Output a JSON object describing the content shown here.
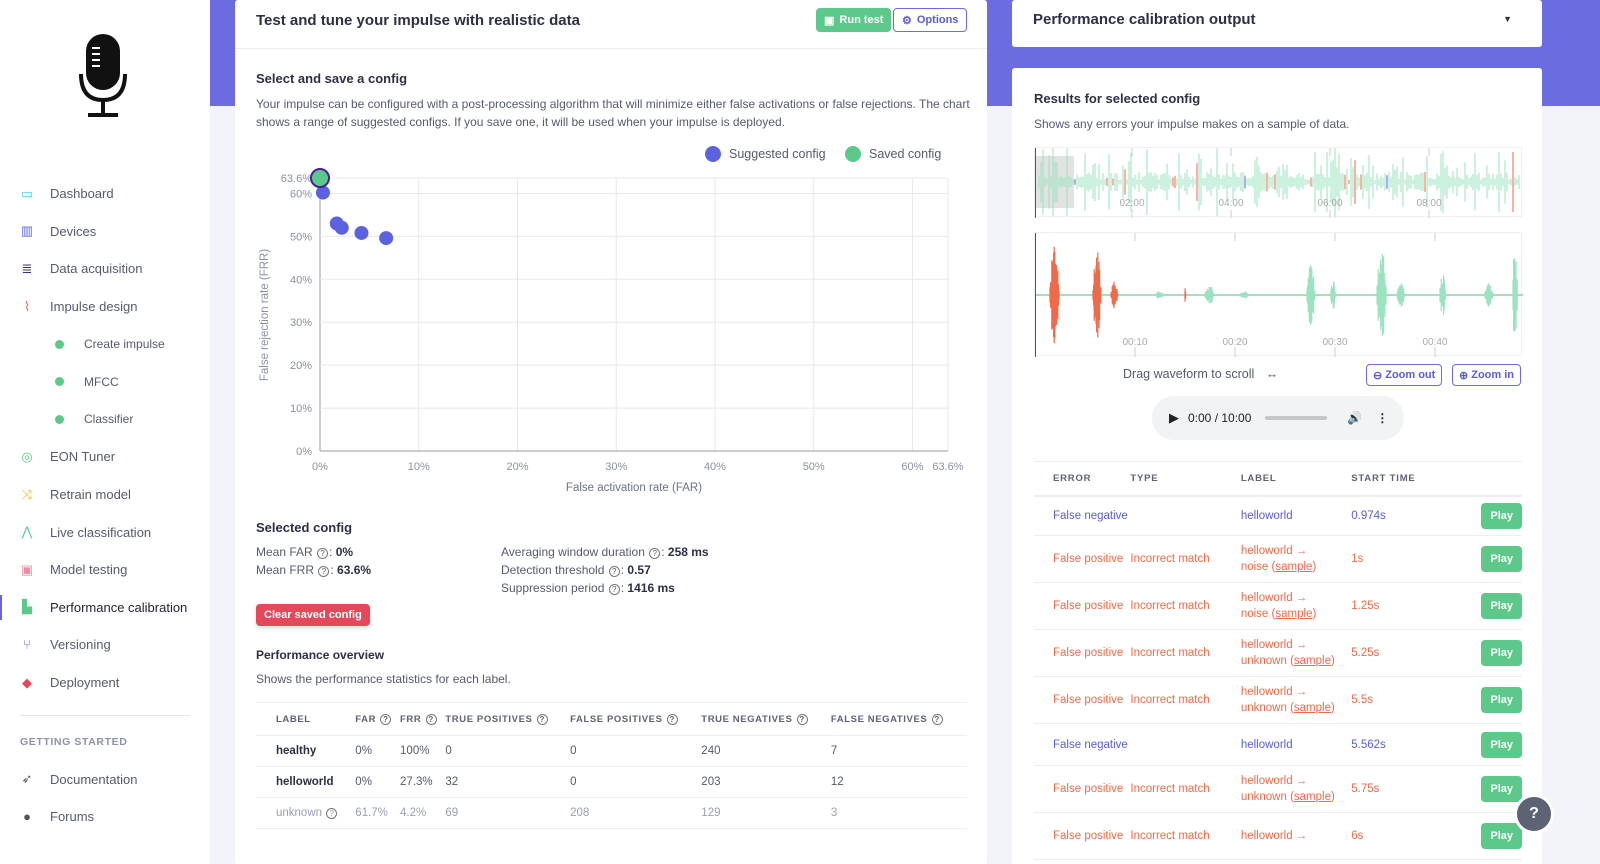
{
  "sidebar": {
    "items": [
      {
        "label": "Dashboard",
        "icon": "monitor-icon",
        "color": "#5bc8e8"
      },
      {
        "label": "Devices",
        "icon": "chip-icon",
        "color": "#6366e0"
      },
      {
        "label": "Data acquisition",
        "icon": "database-icon",
        "color": "#3d2a8f"
      },
      {
        "label": "Impulse design",
        "icon": "pulse-icon",
        "color": "#ef6a48"
      },
      {
        "label": "Create impulse",
        "sub": true
      },
      {
        "label": "MFCC",
        "sub": true
      },
      {
        "label": "Classifier",
        "sub": true
      },
      {
        "label": "EON Tuner",
        "icon": "compass-icon",
        "color": "#5cc98b"
      },
      {
        "label": "Retrain model",
        "icon": "shuffle-icon",
        "color": "#f0b82e"
      },
      {
        "label": "Live classification",
        "icon": "network-icon",
        "color": "#5cc98b"
      },
      {
        "label": "Model testing",
        "icon": "clipboard-check-icon",
        "color": "#f08aa0"
      },
      {
        "label": "Performance calibration",
        "icon": "factory-icon",
        "color": "#5cc98b",
        "active": true
      },
      {
        "label": "Versioning",
        "icon": "branch-icon",
        "color": "#6366e0"
      },
      {
        "label": "Deployment",
        "icon": "box-icon",
        "color": "#e5475b"
      }
    ],
    "section": "GETTING STARTED",
    "extra": [
      {
        "label": "Documentation",
        "icon": "rocket-icon"
      },
      {
        "label": "Forums",
        "icon": "chat-icon"
      }
    ]
  },
  "center": {
    "title": "Test and tune your impulse with realistic data",
    "run_test": "Run test",
    "options": "Options",
    "select_title": "Select and save a config",
    "select_desc": "Your impulse can be configured with a post-processing algorithm that will minimize either false activations or false rejections. The chart shows a range of suggested configs. If you save one, it will be used when your impulse is deployed.",
    "selected_title": "Selected config",
    "mean_far_label": "Mean FAR",
    "mean_far": "0%",
    "mean_frr_label": "Mean FRR",
    "mean_frr": "63.6%",
    "avg_label": "Averaging window duration",
    "avg": "258 ms",
    "thr_label": "Detection threshold",
    "thr": "0.57",
    "sup_label": "Suppression period",
    "sup": "1416 ms",
    "clear": "Clear saved config",
    "perf_title": "Performance overview",
    "perf_desc": "Shows the performance statistics for each label.",
    "perf_headers": [
      "LABEL",
      "FAR",
      "FRR",
      "TRUE POSITIVES",
      "FALSE POSITIVES",
      "TRUE NEGATIVES",
      "FALSE NEGATIVES"
    ],
    "perf_rows": [
      [
        "healthy",
        "0%",
        "100%",
        "0",
        "0",
        "240",
        "7"
      ],
      [
        "helloworld",
        "0%",
        "27.3%",
        "32",
        "0",
        "203",
        "12"
      ],
      [
        "unknown",
        "61.7%",
        "4.2%",
        "69",
        "208",
        "129",
        "3"
      ]
    ]
  },
  "chart_data": {
    "type": "scatter",
    "xlabel": "False activation rate (FAR)",
    "ylabel": "False rejection rate (FRR)",
    "xlim": [
      0,
      63.6
    ],
    "ylim": [
      0,
      63.6
    ],
    "xticks": [
      "0%",
      "10%",
      "20%",
      "30%",
      "40%",
      "50%",
      "60%",
      "63.6%"
    ],
    "xtick_values": [
      0,
      10,
      20,
      30,
      40,
      50,
      60,
      63.6
    ],
    "yticks": [
      "0%",
      "10%",
      "20%",
      "30%",
      "40%",
      "50%",
      "60%",
      "63.6%"
    ],
    "ytick_values": [
      0,
      10,
      20,
      30,
      40,
      50,
      60,
      63.6
    ],
    "legend": "top-right",
    "series": [
      {
        "name": "Suggested config",
        "color": "#5b62e0",
        "points": [
          [
            0.3,
            60.2
          ],
          [
            1.7,
            53
          ],
          [
            2.2,
            52
          ],
          [
            4.2,
            50.8
          ],
          [
            6.7,
            49.6
          ]
        ]
      },
      {
        "name": "Saved config",
        "color": "#5cc98b",
        "points": [
          [
            0,
            63.6
          ]
        ]
      }
    ]
  },
  "right": {
    "output_title": "Performance calibration output",
    "results_title": "Results for selected config",
    "results_desc": "Shows any errors your impulse makes on a sample of data.",
    "overview_ticks": [
      "02:00",
      "04:00",
      "06:00",
      "08:00"
    ],
    "detail_ticks": [
      "00:10",
      "00:20",
      "00:30",
      "00:40"
    ],
    "drag": "Drag waveform to scroll",
    "zoom_out": "Zoom out",
    "zoom_in": "Zoom in",
    "time": "0:00 / 10:00",
    "headers": [
      "ERROR",
      "TYPE",
      "LABEL",
      "START TIME"
    ],
    "rows": [
      {
        "error": "False negative",
        "type": "",
        "label": "helloworld",
        "label2": "",
        "start": "0.974s",
        "kind": "fn"
      },
      {
        "error": "False positive",
        "type": "Incorrect match",
        "label": "helloworld →",
        "label2": "noise",
        "start": "1s",
        "kind": "fp"
      },
      {
        "error": "False positive",
        "type": "Incorrect match",
        "label": "helloworld →",
        "label2": "noise",
        "start": "1.25s",
        "kind": "fp"
      },
      {
        "error": "False positive",
        "type": "Incorrect match",
        "label": "helloworld →",
        "label2": "unknown",
        "start": "5.25s",
        "kind": "fp"
      },
      {
        "error": "False positive",
        "type": "Incorrect match",
        "label": "helloworld →",
        "label2": "unknown",
        "start": "5.5s",
        "kind": "fp"
      },
      {
        "error": "False negative",
        "type": "",
        "label": "helloworld",
        "label2": "",
        "start": "5.562s",
        "kind": "fn"
      },
      {
        "error": "False positive",
        "type": "Incorrect match",
        "label": "helloworld →",
        "label2": "unknown",
        "start": "5.75s",
        "kind": "fp"
      },
      {
        "error": "False positive",
        "type": "Incorrect match",
        "label": "helloworld →",
        "label2": "",
        "start": "6s",
        "kind": "fp"
      }
    ],
    "sample": "sample",
    "play": "Play"
  },
  "help": "?"
}
